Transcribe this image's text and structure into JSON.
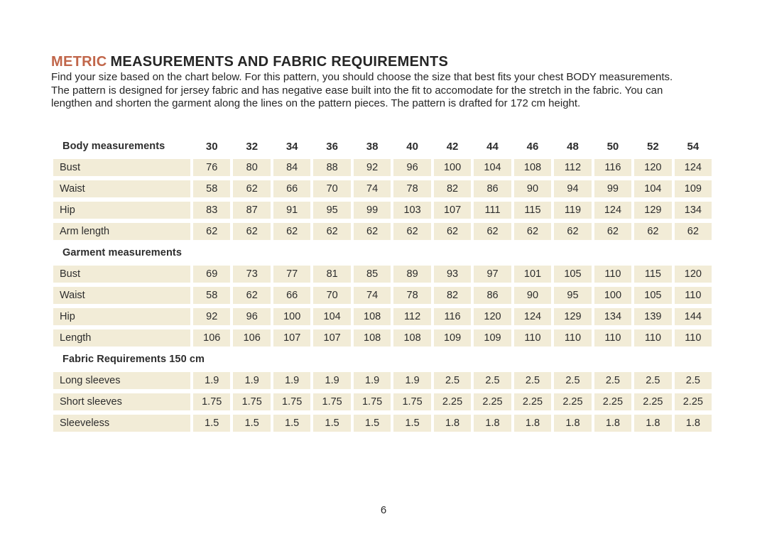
{
  "header": {
    "title_accent": "METRIC",
    "title_rest": "MEASUREMENTS AND FABRIC REQUIREMENTS",
    "intro_lines": [
      "Find your size based on the chart below. For this pattern, you should choose the size that best fits your chest BODY measurements.",
      "The pattern is designed for jersey fabric and has negative ease built into the fit to accomodate for the stretch in the fabric. You can",
      "lengthen and shorten the garment along the lines on the pattern pieces. The pattern is drafted for 172 cm height."
    ]
  },
  "colors": {
    "accent": "#c1664a",
    "cell_bg": "#f2ecd7",
    "text": "#2d2d2d"
  },
  "size_table": {
    "sizes": [
      "30",
      "32",
      "34",
      "36",
      "38",
      "40",
      "42",
      "44",
      "46",
      "48",
      "50",
      "52",
      "54"
    ],
    "sections": [
      {
        "header": "Body measurements",
        "show_sizes": true,
        "rows": [
          {
            "label": "Bust",
            "values": [
              "76",
              "80",
              "84",
              "88",
              "92",
              "96",
              "100",
              "104",
              "108",
              "112",
              "116",
              "120",
              "124"
            ]
          },
          {
            "label": "Waist",
            "values": [
              "58",
              "62",
              "66",
              "70",
              "74",
              "78",
              "82",
              "86",
              "90",
              "94",
              "99",
              "104",
              "109"
            ]
          },
          {
            "label": "Hip",
            "values": [
              "83",
              "87",
              "91",
              "95",
              "99",
              "103",
              "107",
              "111",
              "115",
              "119",
              "124",
              "129",
              "134"
            ]
          },
          {
            "label": "Arm length",
            "values": [
              "62",
              "62",
              "62",
              "62",
              "62",
              "62",
              "62",
              "62",
              "62",
              "62",
              "62",
              "62",
              "62"
            ]
          }
        ]
      },
      {
        "header": "Garment measurements",
        "show_sizes": false,
        "rows": [
          {
            "label": "Bust",
            "values": [
              "69",
              "73",
              "77",
              "81",
              "85",
              "89",
              "93",
              "97",
              "101",
              "105",
              "110",
              "115",
              "120"
            ]
          },
          {
            "label": "Waist",
            "values": [
              "58",
              "62",
              "66",
              "70",
              "74",
              "78",
              "82",
              "86",
              "90",
              "95",
              "100",
              "105",
              "110"
            ]
          },
          {
            "label": "Hip",
            "values": [
              "92",
              "96",
              "100",
              "104",
              "108",
              "112",
              "116",
              "120",
              "124",
              "129",
              "134",
              "139",
              "144"
            ]
          },
          {
            "label": "Length",
            "values": [
              "106",
              "106",
              "107",
              "107",
              "108",
              "108",
              "109",
              "109",
              "110",
              "110",
              "110",
              "110",
              "110"
            ]
          }
        ]
      },
      {
        "header": "Fabric Requirements 150 cm",
        "show_sizes": false,
        "rows": [
          {
            "label": "Long sleeves",
            "values": [
              "1.9",
              "1.9",
              "1.9",
              "1.9",
              "1.9",
              "1.9",
              "2.5",
              "2.5",
              "2.5",
              "2.5",
              "2.5",
              "2.5",
              "2.5"
            ]
          },
          {
            "label": "Short sleeves",
            "values": [
              "1.75",
              "1.75",
              "1.75",
              "1.75",
              "1.75",
              "1.75",
              "2.25",
              "2.25",
              "2.25",
              "2.25",
              "2.25",
              "2.25",
              "2.25"
            ]
          },
          {
            "label": "Sleeveless",
            "values": [
              "1.5",
              "1.5",
              "1.5",
              "1.5",
              "1.5",
              "1.5",
              "1.8",
              "1.8",
              "1.8",
              "1.8",
              "1.8",
              "1.8",
              "1.8"
            ]
          }
        ]
      }
    ]
  },
  "footer": {
    "page_number": "6"
  }
}
